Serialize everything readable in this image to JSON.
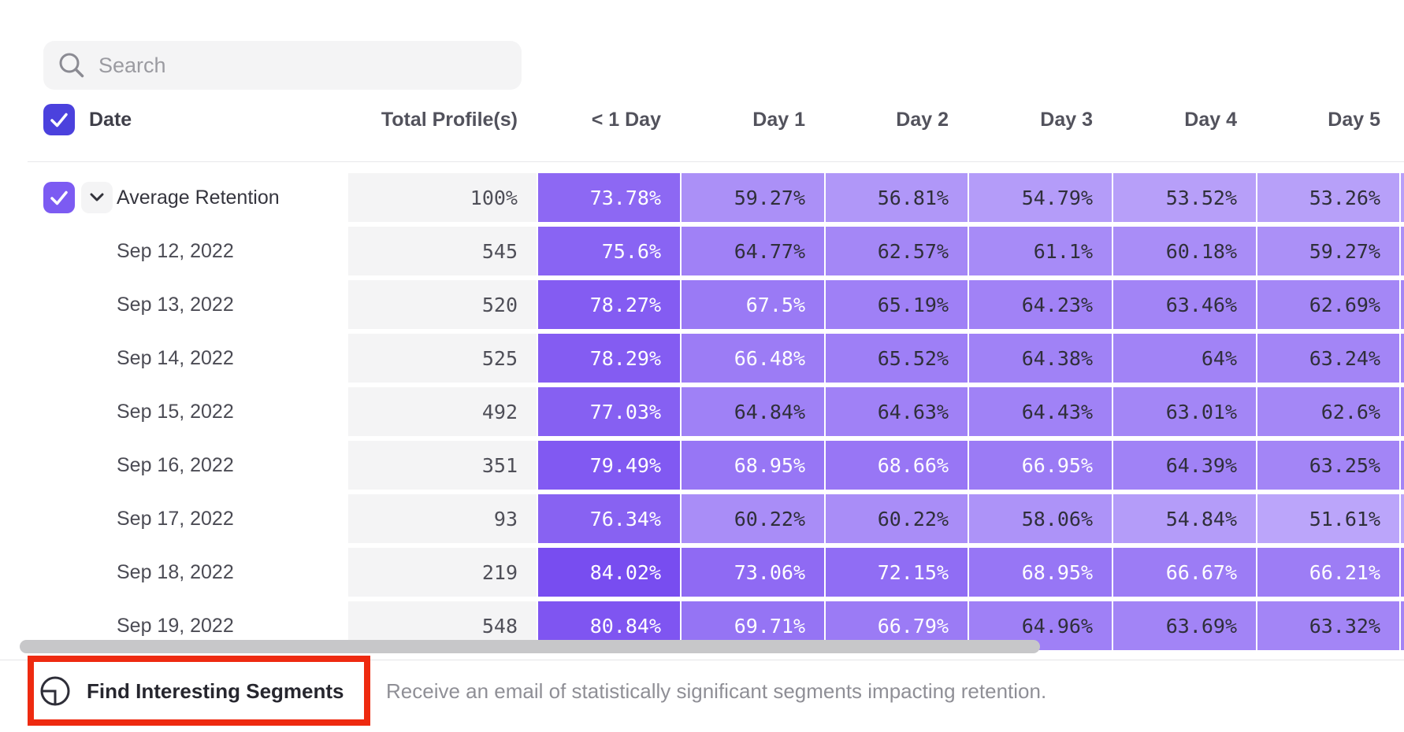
{
  "search": {
    "placeholder": "Search"
  },
  "table": {
    "date_header": "Date",
    "columns": [
      "Total Profile(s)",
      "< 1 Day",
      "Day 1",
      "Day 2",
      "Day 3",
      "Day 4",
      "Day 5"
    ],
    "rows": [
      {
        "label": "Average Retention",
        "is_average": true,
        "total": "100%",
        "values": [
          73.78,
          59.27,
          56.81,
          54.79,
          53.52,
          53.26
        ]
      },
      {
        "label": "Sep 12, 2022",
        "is_average": false,
        "total": "545",
        "values": [
          75.6,
          64.77,
          62.57,
          61.1,
          60.18,
          59.27
        ]
      },
      {
        "label": "Sep 13, 2022",
        "is_average": false,
        "total": "520",
        "values": [
          78.27,
          67.5,
          65.19,
          64.23,
          63.46,
          62.69
        ]
      },
      {
        "label": "Sep 14, 2022",
        "is_average": false,
        "total": "525",
        "values": [
          78.29,
          66.48,
          65.52,
          64.38,
          64,
          63.24
        ]
      },
      {
        "label": "Sep 15, 2022",
        "is_average": false,
        "total": "492",
        "values": [
          77.03,
          64.84,
          64.63,
          64.43,
          63.01,
          62.6
        ]
      },
      {
        "label": "Sep 16, 2022",
        "is_average": false,
        "total": "351",
        "values": [
          79.49,
          68.95,
          68.66,
          66.95,
          64.39,
          63.25
        ]
      },
      {
        "label": "Sep 17, 2022",
        "is_average": false,
        "total": "93",
        "values": [
          76.34,
          60.22,
          60.22,
          58.06,
          54.84,
          51.61
        ]
      },
      {
        "label": "Sep 18, 2022",
        "is_average": false,
        "total": "219",
        "values": [
          84.02,
          73.06,
          72.15,
          68.95,
          66.67,
          66.21
        ]
      },
      {
        "label": "Sep 19, 2022",
        "is_average": false,
        "total": "548",
        "values": [
          80.84,
          69.71,
          66.79,
          64.96,
          63.69,
          63.32
        ]
      }
    ]
  },
  "footer": {
    "button_label": "Find Interesting Segments",
    "description": "Receive an email of statistically significant segments impacting retention."
  },
  "colors": {
    "cell_scale_light": "#bea9fa",
    "cell_scale_dark": "#764af0",
    "scale_min_value": 50,
    "scale_max_value": 85,
    "white_text_threshold": 66,
    "cell_dark_text": "#2f2f3a",
    "header_checkbox": "#4b41dd",
    "row_checkbox": "#7c5bf2",
    "total_cell_bg": "#f4f4f5",
    "highlight_red": "#ee2a10",
    "scrollbar": "#c7c7c9"
  }
}
